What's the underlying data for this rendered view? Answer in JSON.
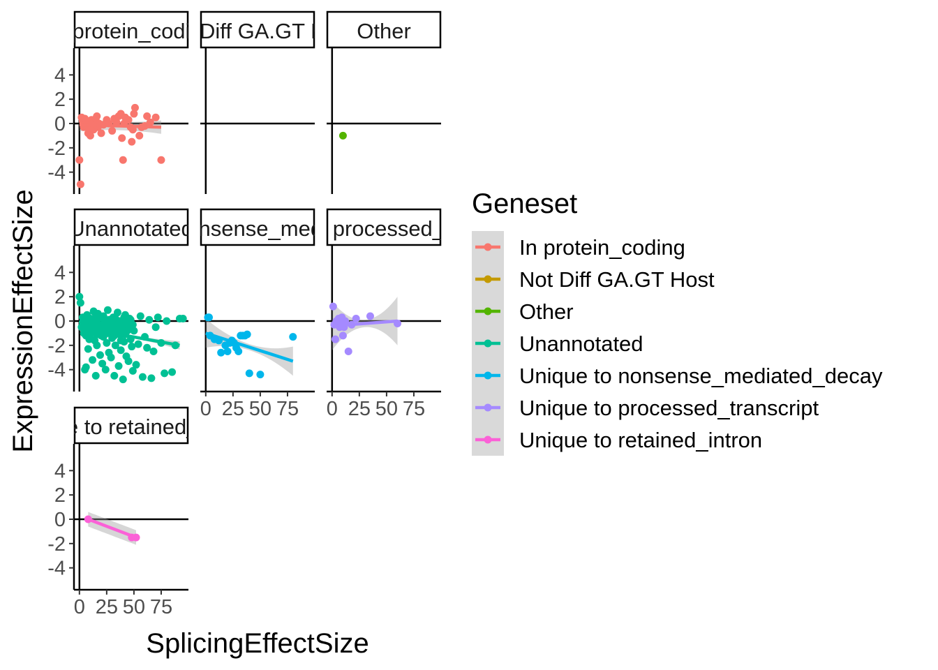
{
  "chart_data": {
    "type": "scatter",
    "xlabel": "SplicingEffectSize",
    "ylabel": "ExpressionEffectSize",
    "xlim": [
      -5,
      100
    ],
    "ylim": [
      -5.8,
      6.2
    ],
    "x_ticks": [
      0,
      25,
      50,
      75
    ],
    "x_tick_labels": [
      "0",
      "25",
      "50",
      "75"
    ],
    "y_ticks": [
      4,
      2,
      0,
      -2,
      -4
    ],
    "y_tick_labels": [
      "4",
      "2",
      "0",
      "-2",
      "-4"
    ],
    "legend": {
      "title": "Geneset",
      "placement": "right",
      "entries": [
        "In protein_coding",
        "Not Diff GA.GT Host",
        "Other",
        "Unannotated",
        "Unique to nonsense_mediated_decay",
        "Unique to processed_transcript",
        "Unique to retained_intron"
      ]
    },
    "colors": [
      "#F8766D",
      "#C49A00",
      "#53B400",
      "#00C094",
      "#00B6EB",
      "#A58AFF",
      "#FB61D7"
    ],
    "panels": [
      {
        "strip": "In protein_coding",
        "series": "In protein_coding",
        "color": "#F8766D",
        "show_x_axis": false,
        "points": [
          [
            0,
            -3.0
          ],
          [
            1,
            -5.0
          ],
          [
            2,
            0.5
          ],
          [
            3,
            0.2
          ],
          [
            4,
            -0.3
          ],
          [
            5,
            0.4
          ],
          [
            6,
            -0.2
          ],
          [
            7,
            0.1
          ],
          [
            8,
            -0.8
          ],
          [
            9,
            -0.5
          ],
          [
            10,
            -1.0
          ],
          [
            11,
            0.3
          ],
          [
            12,
            0.0
          ],
          [
            13,
            -0.5
          ],
          [
            14,
            0.1
          ],
          [
            15,
            0.4
          ],
          [
            16,
            0.6
          ],
          [
            17,
            -0.3
          ],
          [
            18,
            0.0
          ],
          [
            20,
            -0.8
          ],
          [
            22,
            -0.1
          ],
          [
            25,
            0.3
          ],
          [
            27,
            0.0
          ],
          [
            30,
            -0.6
          ],
          [
            32,
            0.4
          ],
          [
            34,
            0.1
          ],
          [
            36,
            0.6
          ],
          [
            38,
            0.8
          ],
          [
            39,
            -1.2
          ],
          [
            40,
            -3.0
          ],
          [
            41,
            0.0
          ],
          [
            42,
            0.5
          ],
          [
            45,
            0.3
          ],
          [
            47,
            -0.3
          ],
          [
            48,
            -1.5
          ],
          [
            49,
            -0.5
          ],
          [
            50,
            0.8
          ],
          [
            51,
            1.3
          ],
          [
            55,
            -1.0
          ],
          [
            57,
            -0.3
          ],
          [
            60,
            -0.2
          ],
          [
            62,
            0.6
          ],
          [
            65,
            0.1
          ],
          [
            70,
            0.5
          ],
          [
            75,
            -3.0
          ]
        ],
        "trend": [
          [
            0,
            -0.1
          ],
          [
            75,
            -0.3
          ]
        ],
        "band": [
          0.35,
          0.55
        ]
      },
      {
        "strip": "Not Diff GA.GT Host",
        "series": "Not Diff GA.GT Host",
        "color": "#C49A00",
        "show_x_axis": false,
        "points": [],
        "trend": null,
        "band": null
      },
      {
        "strip": "Other",
        "series": "Other",
        "color": "#53B400",
        "show_x_axis": false,
        "points": [
          [
            10,
            -1.0
          ]
        ],
        "trend": null,
        "band": null
      },
      {
        "strip": "Unannotated",
        "series": "Unannotated",
        "color": "#00C094",
        "show_x_axis": false,
        "points": [
          [
            0,
            2.0
          ],
          [
            1,
            1.5
          ],
          [
            2,
            -0.5
          ],
          [
            3,
            0.3
          ],
          [
            4,
            -1.0
          ],
          [
            5,
            -4.0
          ],
          [
            6,
            -3.8
          ],
          [
            7,
            0.5
          ],
          [
            8,
            -2.3
          ],
          [
            9,
            -1.5
          ],
          [
            10,
            0.2
          ],
          [
            11,
            -0.8
          ],
          [
            12,
            -3.2
          ],
          [
            13,
            0.8
          ],
          [
            14,
            -1.6
          ],
          [
            15,
            -4.5
          ],
          [
            16,
            -2.0
          ],
          [
            17,
            0.6
          ],
          [
            18,
            -0.3
          ],
          [
            19,
            -2.8
          ],
          [
            20,
            -1.2
          ],
          [
            21,
            -3.5
          ],
          [
            22,
            0.4
          ],
          [
            23,
            -0.9
          ],
          [
            24,
            -4.0
          ],
          [
            25,
            -1.8
          ],
          [
            26,
            0.9
          ],
          [
            27,
            -2.6
          ],
          [
            28,
            0.1
          ],
          [
            29,
            -3.0
          ],
          [
            30,
            -1.4
          ],
          [
            31,
            0.3
          ],
          [
            32,
            -4.5
          ],
          [
            33,
            -2.0
          ],
          [
            34,
            -0.6
          ],
          [
            35,
            0.7
          ],
          [
            36,
            -3.7
          ],
          [
            37,
            -1.1
          ],
          [
            38,
            -2.4
          ],
          [
            39,
            0.0
          ],
          [
            40,
            -4.8
          ],
          [
            41,
            -1.7
          ],
          [
            42,
            0.5
          ],
          [
            43,
            -2.9
          ],
          [
            44,
            -0.4
          ],
          [
            45,
            -3.3
          ],
          [
            46,
            0.2
          ],
          [
            47,
            -1.5
          ],
          [
            48,
            -2.1
          ],
          [
            49,
            -4.1
          ],
          [
            50,
            -0.8
          ],
          [
            52,
            -3.6
          ],
          [
            54,
            -1.9
          ],
          [
            56,
            0.4
          ],
          [
            58,
            -4.6
          ],
          [
            60,
            -1.3
          ],
          [
            62,
            -2.2
          ],
          [
            64,
            0.1
          ],
          [
            66,
            -4.7
          ],
          [
            68,
            -2.5
          ],
          [
            70,
            -0.5
          ],
          [
            72,
            0.3
          ],
          [
            75,
            -1.8
          ],
          [
            78,
            -4.3
          ],
          [
            80,
            0.0
          ],
          [
            85,
            -4.2
          ],
          [
            88,
            -2.0
          ],
          [
            92,
            0.2
          ],
          [
            95,
            0.2
          ],
          [
            3,
            -0.1
          ],
          [
            5,
            0.0
          ],
          [
            7,
            -0.2
          ],
          [
            9,
            0.1
          ],
          [
            11,
            -0.4
          ],
          [
            13,
            0.2
          ],
          [
            15,
            -0.1
          ],
          [
            17,
            -0.6
          ],
          [
            19,
            0.3
          ],
          [
            21,
            -0.3
          ],
          [
            23,
            0.0
          ],
          [
            25,
            -0.5
          ],
          [
            27,
            0.1
          ],
          [
            29,
            -0.2
          ],
          [
            31,
            -0.7
          ],
          [
            33,
            0.2
          ],
          [
            35,
            -0.4
          ],
          [
            37,
            0.0
          ],
          [
            39,
            -0.9
          ],
          [
            41,
            0.3
          ],
          [
            43,
            -0.1
          ],
          [
            45,
            -0.6
          ],
          [
            47,
            0.1
          ],
          [
            49,
            -0.3
          ],
          [
            6,
            -1.2
          ],
          [
            8,
            -0.7
          ],
          [
            10,
            -1.4
          ],
          [
            12,
            -0.9
          ],
          [
            14,
            -0.5
          ],
          [
            16,
            -1.1
          ],
          [
            18,
            -0.8
          ],
          [
            20,
            -0.4
          ],
          [
            22,
            -1.3
          ],
          [
            24,
            -0.6
          ],
          [
            26,
            -1.0
          ],
          [
            28,
            -0.7
          ],
          [
            30,
            -0.3
          ],
          [
            32,
            -1.2
          ],
          [
            34,
            -0.9
          ],
          [
            36,
            -0.2
          ],
          [
            38,
            -1.6
          ],
          [
            40,
            -0.5
          ],
          [
            42,
            -1.1
          ],
          [
            44,
            -0.8
          ]
        ],
        "trend": [
          [
            0,
            -0.5
          ],
          [
            92,
            -2.0
          ]
        ],
        "band": [
          0.12,
          0.35
        ]
      },
      {
        "strip": "Unique to nonsense_mediated_decay",
        "series": "Unique to nonsense_mediated_decay",
        "color": "#00B6EB",
        "show_x_axis": true,
        "points": [
          [
            2,
            0.3
          ],
          [
            3,
            0.3
          ],
          [
            4,
            -1.2
          ],
          [
            8,
            -1.5
          ],
          [
            12,
            -1.6
          ],
          [
            14,
            -2.6
          ],
          [
            18,
            -2.0
          ],
          [
            20,
            -2.5
          ],
          [
            22,
            -1.8
          ],
          [
            24,
            -1.6
          ],
          [
            26,
            -1.8
          ],
          [
            28,
            -2.2
          ],
          [
            30,
            -2.5
          ],
          [
            32,
            -1.2
          ],
          [
            34,
            -1.2
          ],
          [
            36,
            -1.2
          ],
          [
            38,
            -1.1
          ],
          [
            40,
            -4.3
          ],
          [
            50,
            -4.4
          ],
          [
            80,
            -1.3
          ]
        ],
        "trend": [
          [
            0,
            -1.0
          ],
          [
            80,
            -3.3
          ]
        ],
        "band": [
          0.25,
          1.2
        ]
      },
      {
        "strip": "Unique to processed_transcript",
        "series": "Unique to processed_transcript",
        "color": "#A58AFF",
        "show_x_axis": true,
        "points": [
          [
            1,
            1.2
          ],
          [
            2,
            -0.3
          ],
          [
            3,
            -1.5
          ],
          [
            4,
            0.0
          ],
          [
            5,
            -0.2
          ],
          [
            6,
            0.2
          ],
          [
            7,
            -0.5
          ],
          [
            8,
            -0.3
          ],
          [
            9,
            0.3
          ],
          [
            10,
            -1.2
          ],
          [
            11,
            -0.5
          ],
          [
            12,
            0.0
          ],
          [
            15,
            -2.5
          ],
          [
            18,
            -0.3
          ],
          [
            22,
            0.2
          ],
          [
            35,
            0.4
          ],
          [
            60,
            -0.2
          ]
        ],
        "trend": [
          [
            0,
            -0.4
          ],
          [
            60,
            0.0
          ]
        ],
        "band": [
          0.3,
          2.0
        ]
      },
      {
        "strip": "Unique to retained_intron",
        "series": "Unique to retained_intron",
        "color": "#FB61D7",
        "show_x_axis": true,
        "points": [
          [
            8,
            0.0
          ],
          [
            48,
            -1.5
          ],
          [
            52,
            -1.5
          ]
        ],
        "trend": [
          [
            8,
            0.0
          ],
          [
            52,
            -1.5
          ]
        ],
        "band": [
          0.6,
          0.6
        ]
      }
    ]
  }
}
